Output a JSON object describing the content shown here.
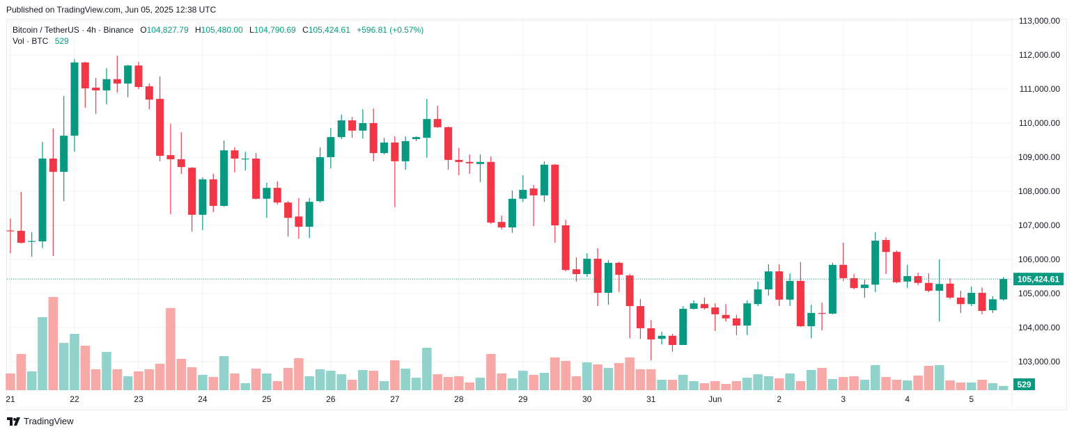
{
  "published": "Published on TradingView.com, Jun 05, 2025 12:38 UTC",
  "legend": {
    "symbol": "Bitcoin / TetherUS · 4h · Binance",
    "o_label": "O",
    "o": "104,827.79",
    "h_label": "H",
    "h": "105,480.00",
    "l_label": "L",
    "l": "104,790.69",
    "c_label": "C",
    "c": "105,424.61",
    "change": "+596.81 (+0.57%)",
    "vol_label": "Vol · BTC",
    "vol": "529"
  },
  "footer": {
    "brand": "TradingView",
    "logo": "tradingview-logo-icon"
  },
  "colors": {
    "up": "#089981",
    "down": "#f23645",
    "vol_up": "#92d2cc",
    "vol_down": "#f7a9a7",
    "last_price": "#089981"
  },
  "chart_data": {
    "type": "candlestick",
    "title": "Bitcoin / TetherUS · 4h · Binance",
    "interval": "4h",
    "ylim": [
      102200,
      113000
    ],
    "y_ticks": [
      "113,000.00",
      "112,000.00",
      "111,000.00",
      "110,000.00",
      "109,000.00",
      "108,000.00",
      "107,000.00",
      "106,000.00",
      "105,000.00",
      "104,000.00",
      "103,000.00"
    ],
    "y_tick_values": [
      113000,
      112000,
      111000,
      110000,
      109000,
      108000,
      107000,
      106000,
      105000,
      104000,
      103000
    ],
    "x_ticks": [
      "21",
      "22",
      "23",
      "24",
      "25",
      "26",
      "27",
      "28",
      "29",
      "30",
      "31",
      "Jun",
      "2",
      "3",
      "4",
      "5"
    ],
    "x_tick_candle_index": [
      0,
      6,
      12,
      18,
      24,
      30,
      36,
      42,
      48,
      54,
      60,
      66,
      72,
      78,
      84,
      90
    ],
    "last_price": 105424.61,
    "last_price_label": "105,424.61",
    "last_volume_label": "529",
    "grid": true,
    "ohlc": [
      [
        106850,
        107200,
        106180,
        106830
      ],
      [
        106840,
        107980,
        106470,
        106490
      ],
      [
        106530,
        106800,
        106080,
        106540
      ],
      [
        106530,
        109450,
        106330,
        108960
      ],
      [
        108960,
        109840,
        106100,
        108570
      ],
      [
        108570,
        110800,
        107710,
        109630
      ],
      [
        109630,
        111880,
        109160,
        111780
      ],
      [
        111780,
        111800,
        110450,
        111020
      ],
      [
        111040,
        111330,
        110270,
        110960
      ],
      [
        110960,
        111610,
        110550,
        111290
      ],
      [
        111290,
        111980,
        110900,
        111160
      ],
      [
        111160,
        111710,
        110760,
        111690
      ],
      [
        111690,
        111800,
        111000,
        111060
      ],
      [
        111080,
        111160,
        110410,
        110690
      ],
      [
        110710,
        111370,
        108880,
        109040
      ],
      [
        109060,
        109980,
        107330,
        108940
      ],
      [
        108940,
        109730,
        108510,
        108710
      ],
      [
        108690,
        108710,
        106820,
        107310
      ],
      [
        107310,
        108410,
        106860,
        108350
      ],
      [
        108350,
        108510,
        107390,
        107570
      ],
      [
        107570,
        109490,
        107550,
        109200
      ],
      [
        109200,
        109290,
        108550,
        108960
      ],
      [
        108950,
        109160,
        108610,
        108960
      ],
      [
        108960,
        109120,
        107760,
        107780
      ],
      [
        107780,
        108250,
        107220,
        108100
      ],
      [
        108100,
        108290,
        107610,
        107670
      ],
      [
        107670,
        107710,
        106670,
        107220
      ],
      [
        107260,
        107800,
        106610,
        106960
      ],
      [
        106960,
        107800,
        106630,
        107690
      ],
      [
        107710,
        109290,
        107670,
        109000
      ],
      [
        109000,
        109860,
        108670,
        109590
      ],
      [
        109590,
        110250,
        109530,
        110080
      ],
      [
        110080,
        110180,
        109570,
        109780
      ],
      [
        109780,
        110410,
        109550,
        110000
      ],
      [
        110000,
        110430,
        108880,
        109120
      ],
      [
        109120,
        109570,
        109080,
        109430
      ],
      [
        109430,
        109610,
        107530,
        108880
      ],
      [
        108880,
        109610,
        108630,
        109470
      ],
      [
        109530,
        109610,
        109470,
        109590
      ],
      [
        109570,
        110710,
        108980,
        110120
      ],
      [
        110120,
        110510,
        109860,
        109880
      ],
      [
        109880,
        109900,
        108630,
        108920
      ],
      [
        108920,
        109270,
        108470,
        108860
      ],
      [
        108860,
        109080,
        108510,
        108820
      ],
      [
        108800,
        109080,
        108270,
        108860
      ],
      [
        108860,
        109020,
        107040,
        107080
      ],
      [
        107100,
        107290,
        106880,
        106940
      ],
      [
        106940,
        108020,
        106780,
        107780
      ],
      [
        107780,
        108470,
        107690,
        108040
      ],
      [
        108080,
        108180,
        106980,
        107880
      ],
      [
        107880,
        108880,
        107690,
        108780
      ],
      [
        108780,
        108800,
        106490,
        107000
      ],
      [
        107000,
        107160,
        105650,
        105690
      ],
      [
        105710,
        106060,
        105350,
        105570
      ],
      [
        105570,
        106180,
        105490,
        106020
      ],
      [
        106020,
        106330,
        104630,
        105020
      ],
      [
        105020,
        105980,
        104670,
        105900
      ],
      [
        105900,
        105940,
        105040,
        105550
      ],
      [
        105530,
        105570,
        103690,
        104630
      ],
      [
        104630,
        104840,
        103670,
        103980
      ],
      [
        103980,
        104220,
        103040,
        103650
      ],
      [
        103670,
        103880,
        103510,
        103760
      ],
      [
        103760,
        103820,
        103290,
        103490
      ],
      [
        103490,
        104630,
        103490,
        104550
      ],
      [
        104550,
        104800,
        104530,
        104710
      ],
      [
        104690,
        104880,
        104530,
        104570
      ],
      [
        104590,
        104710,
        103900,
        104390
      ],
      [
        104370,
        104690,
        104180,
        104270
      ],
      [
        104270,
        104370,
        103780,
        104060
      ],
      [
        104060,
        104800,
        103780,
        104710
      ],
      [
        104690,
        105350,
        104630,
        105120
      ],
      [
        105120,
        105860,
        104940,
        105650
      ],
      [
        105650,
        105860,
        104630,
        104820
      ],
      [
        104820,
        105590,
        104630,
        105370
      ],
      [
        105370,
        105920,
        104020,
        104040
      ],
      [
        104040,
        104670,
        103690,
        104430
      ],
      [
        104430,
        104730,
        103920,
        104410
      ],
      [
        104410,
        105900,
        104390,
        105840
      ],
      [
        105840,
        106490,
        105370,
        105450
      ],
      [
        105450,
        105570,
        105120,
        105160
      ],
      [
        105160,
        105410,
        104880,
        105260
      ],
      [
        105260,
        106800,
        105040,
        106550
      ],
      [
        106570,
        106650,
        105570,
        106220
      ],
      [
        106220,
        106260,
        105300,
        105330
      ],
      [
        105350,
        105840,
        105160,
        105510
      ],
      [
        105510,
        105610,
        105250,
        105310
      ],
      [
        105310,
        105590,
        105040,
        105080
      ],
      [
        105080,
        106000,
        104180,
        105280
      ],
      [
        105290,
        105450,
        104840,
        104880
      ],
      [
        104880,
        105080,
        104430,
        104690
      ],
      [
        104690,
        105200,
        104630,
        105020
      ],
      [
        105020,
        105180,
        104390,
        104490
      ],
      [
        104510,
        104920,
        104430,
        104830
      ],
      [
        104827.79,
        105480,
        104790.69,
        105424.61
      ]
    ],
    "volume": [
      2110,
      4580,
      2380,
      9240,
      11790,
      5980,
      7130,
      5630,
      2640,
      4840,
      2640,
      1760,
      2380,
      2640,
      3340,
      10380,
      3960,
      2900,
      1940,
      1670,
      4310,
      2110,
      880,
      2730,
      2110,
      1140,
      2820,
      4050,
      1760,
      2640,
      2460,
      2020,
      1320,
      2550,
      2460,
      1140,
      3780,
      2730,
      1580,
      5370,
      2020,
      1670,
      1760,
      970,
      1580,
      4580,
      2110,
      1500,
      2460,
      1940,
      2200,
      4140,
      3700,
      1760,
      3520,
      3260,
      2820,
      3430,
      4140,
      2640,
      2640,
      1320,
      1320,
      1940,
      1140,
      880,
      1140,
      790,
      1140,
      1580,
      2020,
      1760,
      1500,
      2110,
      1140,
      2550,
      2820,
      1410,
      1670,
      1760,
      1320,
      3170,
      1670,
      1320,
      1230,
      1850,
      3080,
      3170,
      1230,
      970,
      970,
      1320,
      880,
      529
    ]
  }
}
